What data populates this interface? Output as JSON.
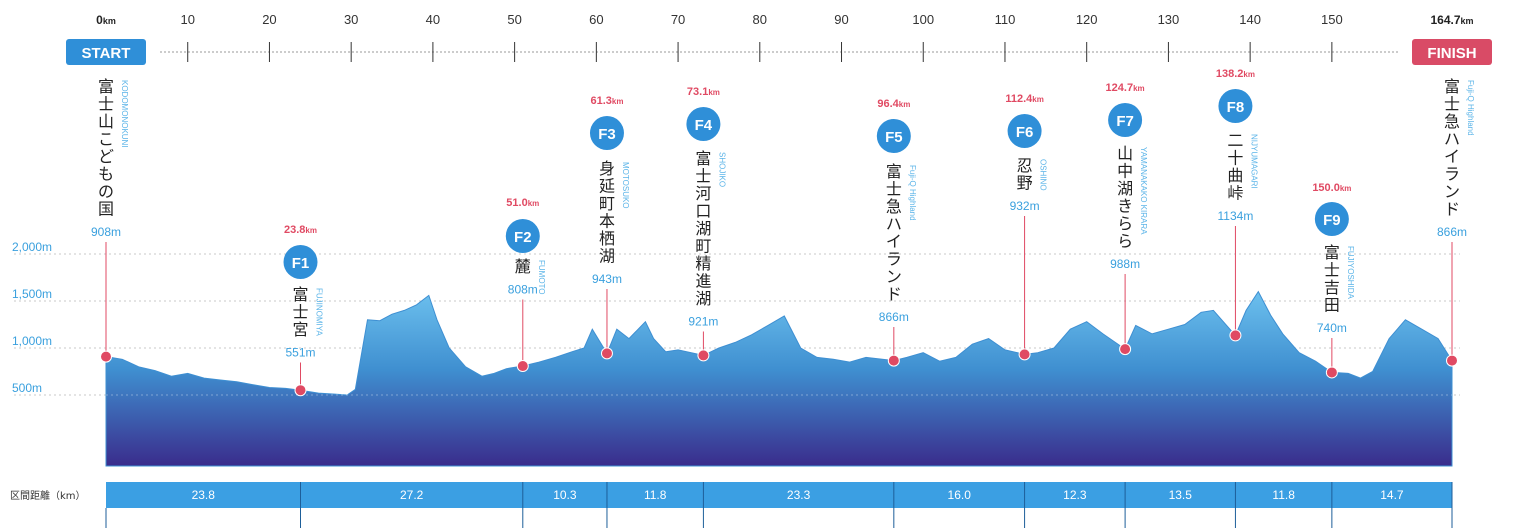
{
  "chart_data": {
    "type": "area",
    "title": "",
    "x_unit": "km",
    "x_range": [
      0,
      164.7
    ],
    "x_ticks": [
      {
        "km": 0,
        "label": "0",
        "unit": "km"
      },
      {
        "km": 10,
        "label": "10"
      },
      {
        "km": 20,
        "label": "20"
      },
      {
        "km": 30,
        "label": "30"
      },
      {
        "km": 40,
        "label": "40"
      },
      {
        "km": 50,
        "label": "50"
      },
      {
        "km": 60,
        "label": "60"
      },
      {
        "km": 70,
        "label": "70"
      },
      {
        "km": 80,
        "label": "80"
      },
      {
        "km": 90,
        "label": "90"
      },
      {
        "km": 100,
        "label": "100"
      },
      {
        "km": 110,
        "label": "110"
      },
      {
        "km": 120,
        "label": "120"
      },
      {
        "km": 130,
        "label": "130"
      },
      {
        "km": 140,
        "label": "140"
      },
      {
        "km": 150,
        "label": "150"
      },
      {
        "km": 164.7,
        "label": "164.7",
        "unit": "km"
      }
    ],
    "start_label": "START",
    "finish_label": "FINISH",
    "y_unit": "m",
    "y_range": [
      0,
      2200
    ],
    "y_ticks": [
      {
        "value": 2000,
        "label": "2,000m"
      },
      {
        "value": 1500,
        "label": "1,500m"
      },
      {
        "value": 1000,
        "label": "1,000m"
      },
      {
        "value": 500,
        "label": "500m"
      }
    ],
    "profile": {
      "x": [
        0,
        2,
        4,
        6,
        8,
        10,
        12,
        14,
        16,
        18,
        20,
        22,
        23.8,
        26,
        28,
        29.5,
        30.5,
        32,
        33.5,
        35,
        36.5,
        38,
        39.5,
        40.5,
        42,
        44,
        46,
        47.5,
        49,
        51,
        53,
        55,
        57,
        58.5,
        59.5,
        61.3,
        62.5,
        64,
        66,
        67,
        68.5,
        70,
        73.1,
        75,
        77,
        79,
        81,
        83,
        85,
        87,
        89,
        91,
        93,
        96.4,
        98,
        100,
        102,
        104,
        106,
        108,
        110,
        112.4,
        114,
        116,
        118,
        120,
        122,
        124.7,
        126,
        128,
        130,
        132,
        134,
        135.5,
        138.2,
        139.5,
        141,
        142.5,
        144,
        146,
        148,
        150,
        152,
        153.5,
        155,
        157,
        159,
        161,
        163,
        164.7
      ],
      "y": [
        908,
        880,
        800,
        760,
        700,
        730,
        680,
        660,
        640,
        610,
        580,
        570,
        551,
        520,
        510,
        500,
        560,
        1300,
        1290,
        1360,
        1400,
        1460,
        1560,
        1300,
        1000,
        800,
        700,
        730,
        780,
        808,
        850,
        900,
        960,
        1000,
        1200,
        943,
        1200,
        1100,
        1280,
        1100,
        960,
        980,
        921,
        1000,
        1060,
        1140,
        1240,
        1340,
        1000,
        900,
        880,
        850,
        900,
        866,
        900,
        950,
        860,
        900,
        1040,
        1100,
        980,
        932,
        950,
        1000,
        1200,
        1280,
        1150,
        988,
        1240,
        1150,
        1200,
        1250,
        1380,
        1400,
        1134,
        1400,
        1600,
        1350,
        1150,
        950,
        860,
        740,
        730,
        680,
        750,
        1100,
        1300,
        1200,
        1100,
        866
      ]
    },
    "points": [
      {
        "id": "START",
        "km": 0,
        "km_label": "",
        "alt": 908,
        "alt_label": "908m",
        "name": "富士山こどもの国",
        "romaji": "KODOMONOKUNI",
        "badge": ""
      },
      {
        "id": "F1",
        "km": 23.8,
        "km_label": "23.8km",
        "alt": 551,
        "alt_label": "551m",
        "name": "富士宮",
        "romaji": "FUJINOMIYA",
        "badge": "F1"
      },
      {
        "id": "F2",
        "km": 51.0,
        "km_label": "51.0km",
        "alt": 808,
        "alt_label": "808m",
        "name": "麓",
        "romaji": "FUMOTO",
        "badge": "F2"
      },
      {
        "id": "F3",
        "km": 61.3,
        "km_label": "61.3km",
        "alt": 943,
        "alt_label": "943m",
        "name": "身延町本栖湖",
        "romaji": "MOTOSUKO",
        "badge": "F3"
      },
      {
        "id": "F4",
        "km": 73.1,
        "km_label": "73.1km",
        "alt": 921,
        "alt_label": "921m",
        "name": "富士河口湖町精進湖",
        "romaji": "SHOJIKO",
        "badge": "F4"
      },
      {
        "id": "F5",
        "km": 96.4,
        "km_label": "96.4km",
        "alt": 866,
        "alt_label": "866m",
        "name": "富士急ハイランド",
        "romaji": "Fuji-Q Highland",
        "badge": "F5"
      },
      {
        "id": "F6",
        "km": 112.4,
        "km_label": "112.4km",
        "alt": 932,
        "alt_label": "932m",
        "name": "忍野",
        "romaji": "OSHINO",
        "badge": "F6"
      },
      {
        "id": "F7",
        "km": 124.7,
        "km_label": "124.7km",
        "alt": 988,
        "alt_label": "988m",
        "name": "山中湖きらら",
        "romaji": "YAMANAKAKO KIRARA",
        "badge": "F7"
      },
      {
        "id": "F8",
        "km": 138.2,
        "km_label": "138.2km",
        "alt": 1134,
        "alt_label": "1134m",
        "name": "二十曲峠",
        "romaji": "NIJYUMAGARI",
        "badge": "F8"
      },
      {
        "id": "F9",
        "km": 150.0,
        "km_label": "150.0km",
        "alt": 740,
        "alt_label": "740m",
        "name": "富士吉田",
        "romaji": "FUJIYOSHIDA",
        "badge": "F9"
      },
      {
        "id": "FINISH",
        "km": 164.7,
        "km_label": "",
        "alt": 866,
        "alt_label": "866m",
        "name": "富士急ハイランド",
        "romaji": "Fuji-Q Highland",
        "badge": ""
      }
    ],
    "segments": {
      "title": "区間距離（km）",
      "values": [
        "23.8",
        "27.2",
        "10.3",
        "11.8",
        "23.3",
        "16.0",
        "12.3",
        "13.5",
        "11.8",
        "14.7"
      ]
    },
    "colors": {
      "start": "#2f8fd8",
      "finish": "#d94b66",
      "marker": "#e04a63",
      "badge": "#2f8fd8",
      "segment_bar": "#3b9fe3",
      "profile_top": "#5cb4e6",
      "profile_bottom": "#3a2f8f"
    }
  }
}
